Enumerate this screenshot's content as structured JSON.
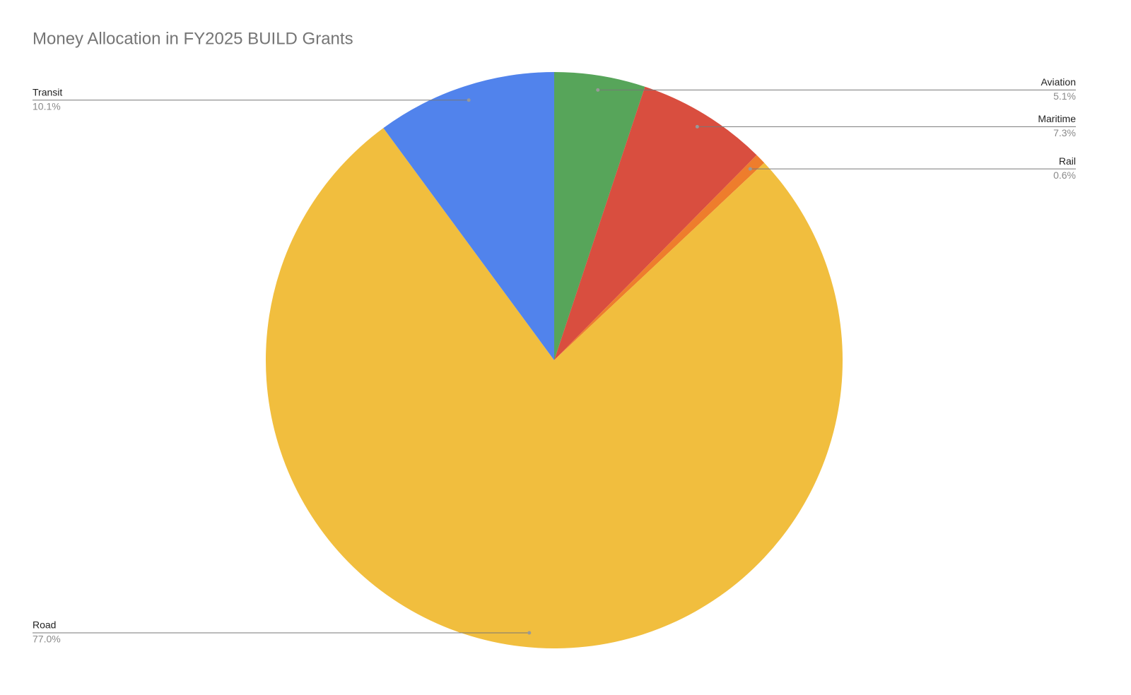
{
  "chart_data": {
    "type": "pie",
    "title": "Money Allocation in FY2025 BUILD Grants",
    "categories": [
      "Aviation",
      "Maritime",
      "Rail",
      "Road",
      "Transit"
    ],
    "values": [
      5.1,
      7.3,
      0.6,
      77.0,
      10.1
    ],
    "value_labels": [
      "5.1%",
      "7.3%",
      "0.6%",
      "77.0%",
      "10.1%"
    ],
    "colors": [
      "#57a55a",
      "#d94e3f",
      "#ee7d2c",
      "#f1be3e",
      "#5183ec"
    ]
  }
}
